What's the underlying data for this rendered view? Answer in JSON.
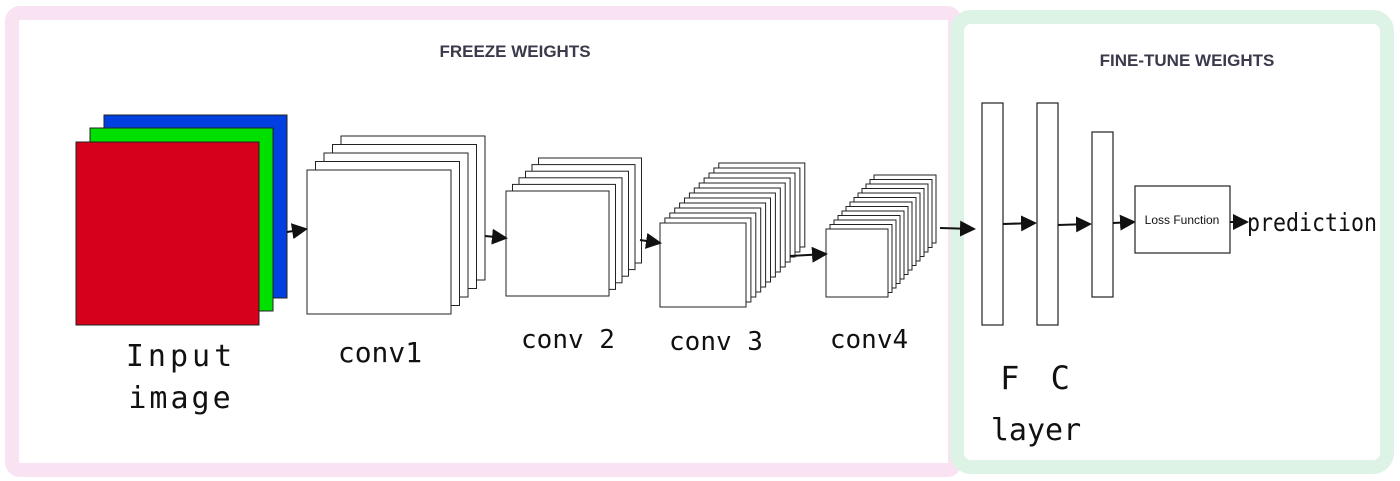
{
  "freeze_panel": {
    "title": "FREEZE WEIGHTS"
  },
  "finetune_panel": {
    "title": "FINE-TUNE WEIGHTS"
  },
  "input": {
    "label_line1": "Input",
    "label_line2": "image"
  },
  "conv_layers": [
    {
      "label": "conv1"
    },
    {
      "label": "conv 2"
    },
    {
      "label": "conv 3"
    },
    {
      "label": "conv4"
    }
  ],
  "fc": {
    "label_line1": "F C",
    "label_line2": "layer"
  },
  "loss": {
    "label": "Loss Function"
  },
  "output": {
    "label": "prediction"
  },
  "colors": {
    "freeze_border": "#f9e3f3",
    "finetune_border": "#ddf3e6",
    "channel_red": "#d6001a",
    "channel_green": "#00e000",
    "channel_blue": "#0040e0"
  }
}
